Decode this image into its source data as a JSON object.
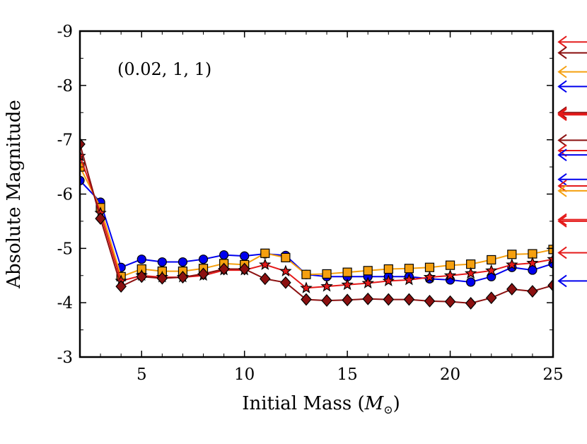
{
  "chart_data": {
    "type": "line",
    "annotation": "(0.02, 1, 1)",
    "xlabel": "Initial Mass (M⊙)",
    "ylabel": "Absolute Magnitude",
    "xlim": [
      2,
      25
    ],
    "ylim": [
      -3,
      -9
    ],
    "y_inverted": true,
    "xticks": [
      5,
      10,
      15,
      20,
      25
    ],
    "yticks": [
      -9,
      -8,
      -7,
      -6,
      -5,
      -4,
      -3
    ],
    "xtick_labels": [
      "5",
      "10",
      "15",
      "20",
      "25"
    ],
    "ytick_labels": [
      "-9",
      "-8",
      "-7",
      "-6",
      "-5",
      "-4",
      "-3"
    ],
    "x": [
      2,
      3,
      4,
      5,
      6,
      7,
      8,
      9,
      10,
      11,
      12,
      13,
      14,
      15,
      16,
      17,
      18,
      19,
      20,
      21,
      22,
      23,
      24,
      25
    ],
    "series": [
      {
        "name": "blue",
        "color": "#0000ee",
        "marker": "circle",
        "values": [
          -6.25,
          -5.85,
          -4.65,
          -4.8,
          -4.75,
          -4.75,
          -4.8,
          -4.88,
          -4.86,
          -4.9,
          -4.87,
          -4.52,
          -4.48,
          -4.48,
          -4.48,
          -4.48,
          -4.48,
          -4.44,
          -4.42,
          -4.38,
          -4.48,
          -4.65,
          -4.6,
          -4.72
        ]
      },
      {
        "name": "orange",
        "color": "#f5a00f",
        "marker": "square",
        "values": [
          -6.5,
          -5.75,
          -4.48,
          -4.62,
          -4.58,
          -4.58,
          -4.63,
          -4.72,
          -4.7,
          -4.91,
          -4.83,
          -4.52,
          -4.53,
          -4.56,
          -4.59,
          -4.62,
          -4.63,
          -4.65,
          -4.69,
          -4.71,
          -4.79,
          -4.89,
          -4.9,
          -4.98
        ]
      },
      {
        "name": "red",
        "color": "#e41a1a",
        "marker": "star",
        "values": [
          -6.7,
          -5.65,
          -4.4,
          -4.5,
          -4.47,
          -4.47,
          -4.5,
          -4.6,
          -4.6,
          -4.7,
          -4.58,
          -4.27,
          -4.3,
          -4.33,
          -4.36,
          -4.4,
          -4.42,
          -4.47,
          -4.5,
          -4.54,
          -4.59,
          -4.7,
          -4.73,
          -4.8
        ]
      },
      {
        "name": "dark red",
        "color": "#8b1010",
        "marker": "diamond",
        "values": [
          -6.92,
          -5.55,
          -4.3,
          -4.48,
          -4.45,
          -4.47,
          -4.53,
          -4.62,
          -4.62,
          -4.44,
          -4.37,
          -4.06,
          -4.04,
          -4.05,
          -4.07,
          -4.06,
          -4.06,
          -4.03,
          -4.02,
          -3.99,
          -4.09,
          -4.25,
          -4.21,
          -4.32
        ]
      }
    ],
    "arrows": [
      {
        "y": -8.8,
        "color": "#e41a1a"
      },
      {
        "y": -8.6,
        "color": "#8b1010"
      },
      {
        "y": -8.25,
        "color": "#f5a00f"
      },
      {
        "y": -7.98,
        "color": "#0000ee"
      },
      {
        "y": -7.5,
        "color": "#8b1010"
      },
      {
        "y": -7.48,
        "color": "#e41a1a"
      },
      {
        "y": -7.46,
        "color": "#e41a1a"
      },
      {
        "y": -6.99,
        "color": "#8b1010"
      },
      {
        "y": -6.8,
        "color": "#e41a1a"
      },
      {
        "y": -6.72,
        "color": "#0000ee"
      },
      {
        "y": -6.27,
        "color": "#0000ee"
      },
      {
        "y": -6.15,
        "color": "#e41a1a"
      },
      {
        "y": -6.06,
        "color": "#f5a00f"
      },
      {
        "y": -5.53,
        "color": "#e41a1a"
      },
      {
        "y": -5.5,
        "color": "#e41a1a"
      },
      {
        "y": -4.92,
        "color": "#e41a1a"
      },
      {
        "y": -4.4,
        "color": "#0000ee"
      }
    ]
  }
}
